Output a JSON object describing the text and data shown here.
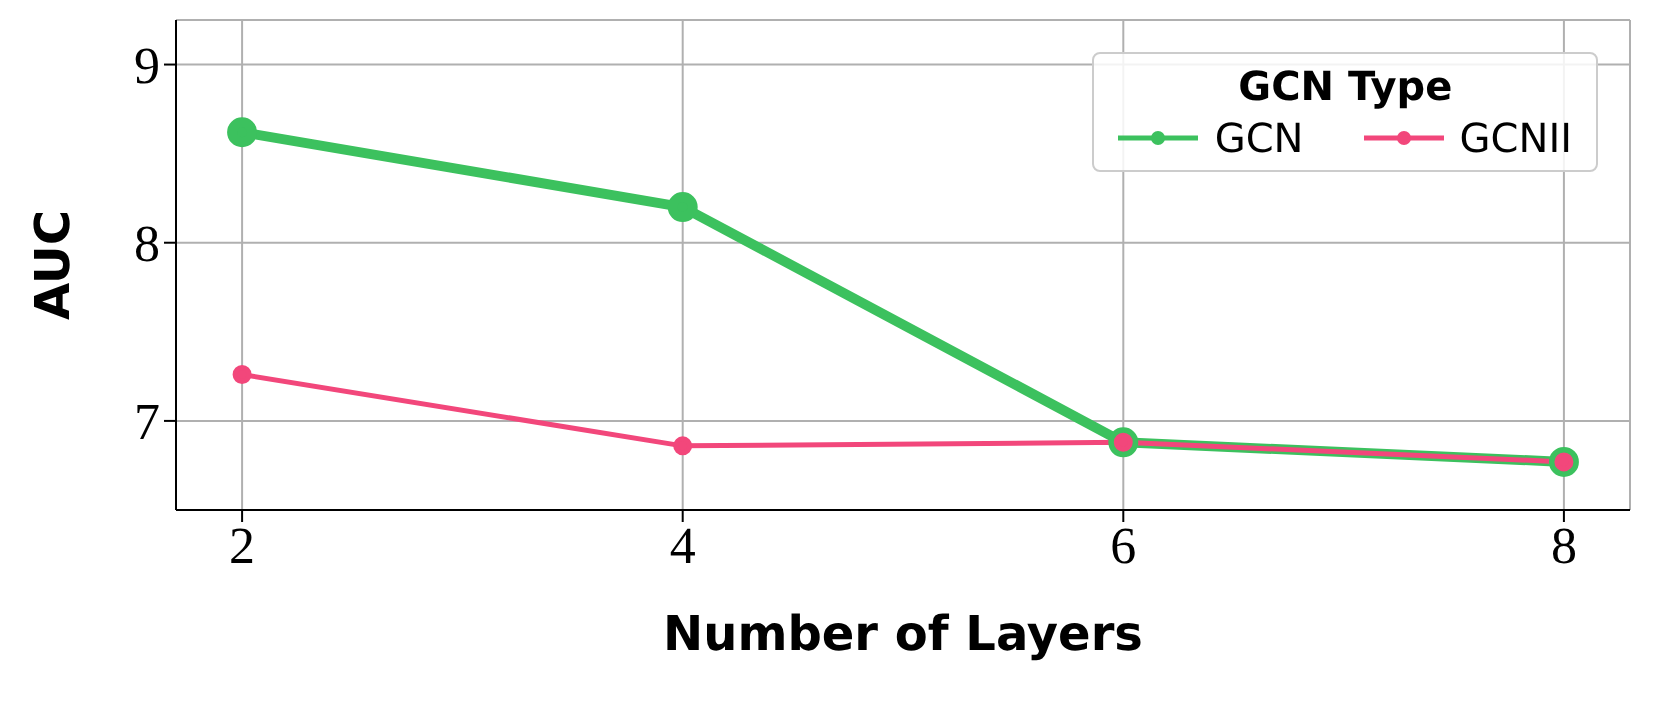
{
  "chart_data": {
    "type": "line",
    "xlabel": "Number of Layers",
    "ylabel": "AUC",
    "legend_title": "GCN Type",
    "x": [
      2,
      4,
      6,
      8
    ],
    "series": [
      {
        "name": "GCN",
        "color": "#3cc15e",
        "values": [
          8.62,
          8.2,
          6.88,
          6.77
        ]
      },
      {
        "name": "GCNII",
        "color": "#f2477b",
        "values": [
          7.26,
          6.86,
          6.88,
          6.77
        ]
      }
    ],
    "xlim": [
      1.7,
      8.3
    ],
    "xticks": [
      2,
      4,
      6,
      8
    ],
    "ylim": [
      6.5,
      9.25
    ],
    "yticks": [
      7,
      8,
      9
    ],
    "grid": true,
    "legend": "top right",
    "marker": "circle",
    "line_style": "solid"
  }
}
